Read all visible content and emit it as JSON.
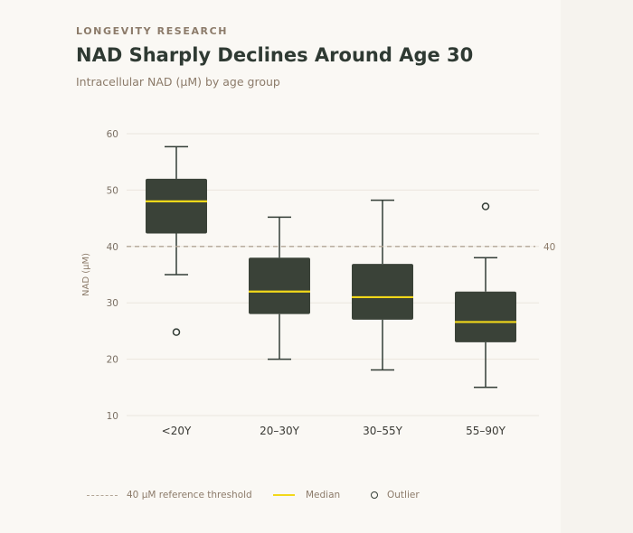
{
  "header": {
    "eyebrow": "LONGEVITY RESEARCH",
    "title": "NAD Sharply Declines Around Age 30",
    "subtitle": "Intracellular NAD (µM) by age group"
  },
  "legend": {
    "threshold_label": "40 µM reference threshold",
    "median_label": "Median",
    "outlier_label": "Outlier"
  },
  "colors": {
    "box": "#3a4238",
    "whisker": "#333d36",
    "median": "#f2d81a",
    "threshold": "#b3a696",
    "grid": "#ebe6de",
    "text": "#8c7b6a",
    "tick": "#7a6f63"
  },
  "chart_data": {
    "type": "box",
    "ylabel": "NAD (µM)",
    "ylim": [
      10,
      60
    ],
    "yticks": [
      10,
      20,
      30,
      40,
      50,
      60
    ],
    "reference_line": {
      "value": 40,
      "label": "40"
    },
    "categories": [
      "<20Y",
      "20–30Y",
      "30–55Y",
      "55–90Y"
    ],
    "boxes": [
      {
        "category": "<20Y",
        "min": 35,
        "q1": 42.3,
        "median": 48,
        "q3": 52,
        "max": 57.7,
        "outliers": [
          24.8
        ]
      },
      {
        "category": "20–30Y",
        "min": 20,
        "q1": 28,
        "median": 32,
        "q3": 38,
        "max": 45.2,
        "outliers": []
      },
      {
        "category": "30–55Y",
        "min": 18.1,
        "q1": 27,
        "median": 31,
        "q3": 36.9,
        "max": 48.2,
        "outliers": []
      },
      {
        "category": "55–90Y",
        "min": 15,
        "q1": 23,
        "median": 26.6,
        "q3": 32,
        "max": 38,
        "outliers": [
          47.1
        ]
      }
    ]
  }
}
